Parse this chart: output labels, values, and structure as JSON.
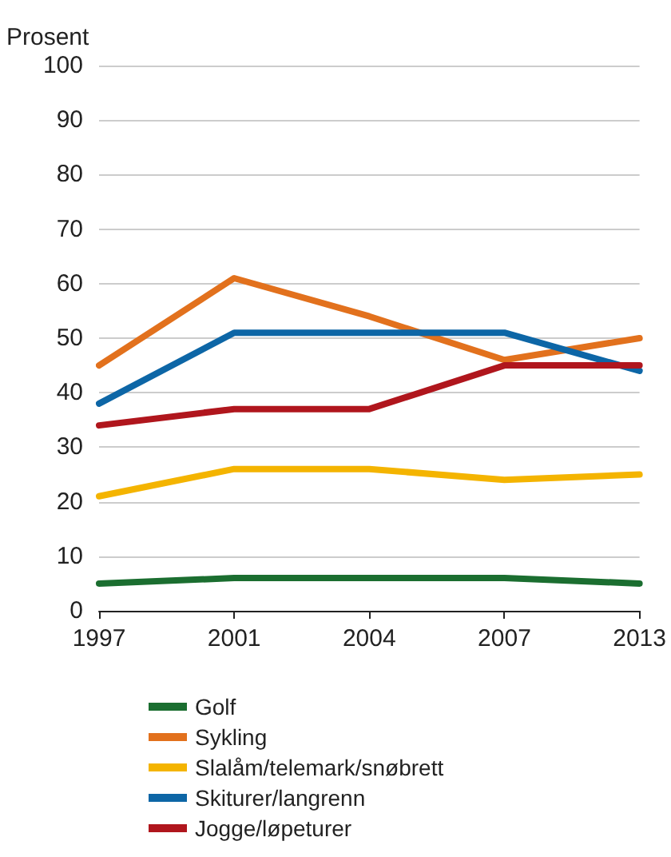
{
  "chart_data": {
    "type": "line",
    "ylabel": "Prosent",
    "categories": [
      "1997",
      "2001",
      "2004",
      "2007",
      "2013"
    ],
    "series": [
      {
        "name": "Golf",
        "color": "#1b6e30",
        "values": [
          5,
          6,
          6,
          6,
          5
        ]
      },
      {
        "name": "Sykling",
        "color": "#e2711d",
        "values": [
          45,
          61,
          54,
          46,
          50
        ]
      },
      {
        "name": "Slalåm/telemark/snøbrett",
        "color": "#f4b400",
        "values": [
          21,
          26,
          26,
          24,
          25
        ]
      },
      {
        "name": "Skiturer/langrenn",
        "color": "#0d66a6",
        "values": [
          38,
          51,
          51,
          51,
          44
        ]
      },
      {
        "name": "Jogge/løpeturer",
        "color": "#b0161d",
        "values": [
          34,
          37,
          37,
          45,
          45
        ]
      }
    ],
    "ylim": [
      0,
      100
    ],
    "yticks": [
      0,
      10,
      20,
      30,
      40,
      50,
      60,
      70,
      80,
      90,
      100
    ],
    "grid": "y",
    "legend": "bottom",
    "marker": "none",
    "line_style": "solid"
  }
}
